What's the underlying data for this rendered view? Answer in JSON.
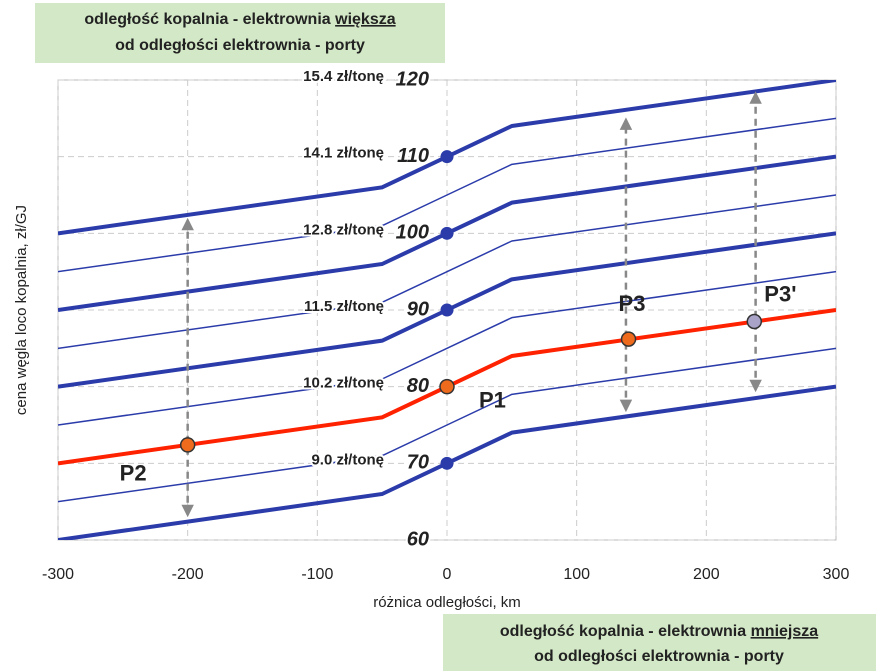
{
  "chart_data": {
    "type": "line",
    "xlabel": "różnica odległości, km",
    "ylabel": "cena węgla loco kopalnia, zł/GJ",
    "xlim": [
      -300,
      300
    ],
    "ylim": [
      60,
      120
    ],
    "xticks": [
      -300,
      -200,
      -100,
      0,
      100,
      200,
      300
    ],
    "yticks": [
      60,
      70,
      80,
      90,
      100,
      110,
      120
    ],
    "grid": true,
    "x": [
      -300,
      -50,
      0,
      50,
      300
    ],
    "series": [
      {
        "color": "#2b3caa",
        "line_width": 4,
        "values": [
          60,
          66,
          70,
          74,
          80
        ]
      },
      {
        "color": "#2b3caa",
        "line_width": 1.5,
        "values": [
          65,
          71,
          75,
          79,
          85
        ]
      },
      {
        "color": "#ff2200",
        "line_width": 4,
        "values": [
          70,
          76,
          80,
          84,
          90
        ]
      },
      {
        "color": "#2b3caa",
        "line_width": 1.5,
        "values": [
          75,
          81,
          85,
          89,
          95
        ]
      },
      {
        "color": "#2b3caa",
        "line_width": 4,
        "values": [
          80,
          86,
          90,
          94,
          100
        ]
      },
      {
        "color": "#2b3caa",
        "line_width": 1.5,
        "values": [
          85,
          91,
          95,
          99,
          105
        ]
      },
      {
        "color": "#2b3caa",
        "line_width": 4,
        "values": [
          90,
          96,
          100,
          104,
          110
        ]
      },
      {
        "color": "#2b3caa",
        "line_width": 1.5,
        "values": [
          95,
          101,
          105,
          109,
          115
        ]
      },
      {
        "color": "#2b3caa",
        "line_width": 4,
        "values": [
          100,
          106,
          110,
          114,
          120
        ]
      }
    ],
    "dots": {
      "color": "#2b3caa",
      "x": [
        0,
        0,
        0,
        0
      ],
      "y": [
        70,
        90,
        100,
        110
      ]
    },
    "points": [
      {
        "label": "P1",
        "x": 0,
        "y": 80,
        "color": "#ee6a1c"
      },
      {
        "label": "P2",
        "x": -200,
        "y": 72.4,
        "color": "#ee6a1c"
      },
      {
        "label": "P3",
        "x": 140,
        "y": 86.2,
        "color": "#ee6a1c"
      },
      {
        "label": "P3'",
        "x": 237,
        "y": 88.5,
        "color": "#a9a3c8"
      }
    ],
    "point_label_color": "#ee6a1c",
    "arrows": [
      {
        "x": -200,
        "y": [
          63.3,
          101.7
        ]
      },
      {
        "x": 138,
        "y": [
          77,
          114.8
        ]
      },
      {
        "x": 238,
        "y": [
          79.6,
          118.2
        ]
      }
    ],
    "price_labels": [
      {
        "y": 70,
        "label": "9.0 zł/tonę"
      },
      {
        "y": 80,
        "label": "10.2 zł/tonę"
      },
      {
        "y": 90,
        "label": "11.5 zł/tonę"
      },
      {
        "y": 100,
        "label": "12.8 zł/tonę"
      },
      {
        "y": 110,
        "label": "14.1 zł/tonę"
      },
      {
        "y": 120,
        "label": "15.4 zł/tonę"
      }
    ],
    "note_top": {
      "line1": [
        "odległość kopalnia - elektrownia",
        "większa"
      ],
      "line2": "od odległości elektrownia - porty"
    },
    "note_bottom": {
      "line1": [
        "odległość kopalnia - elektrownia",
        "mniejsza"
      ],
      "line2": "od odległości elektrownia - porty"
    }
  }
}
